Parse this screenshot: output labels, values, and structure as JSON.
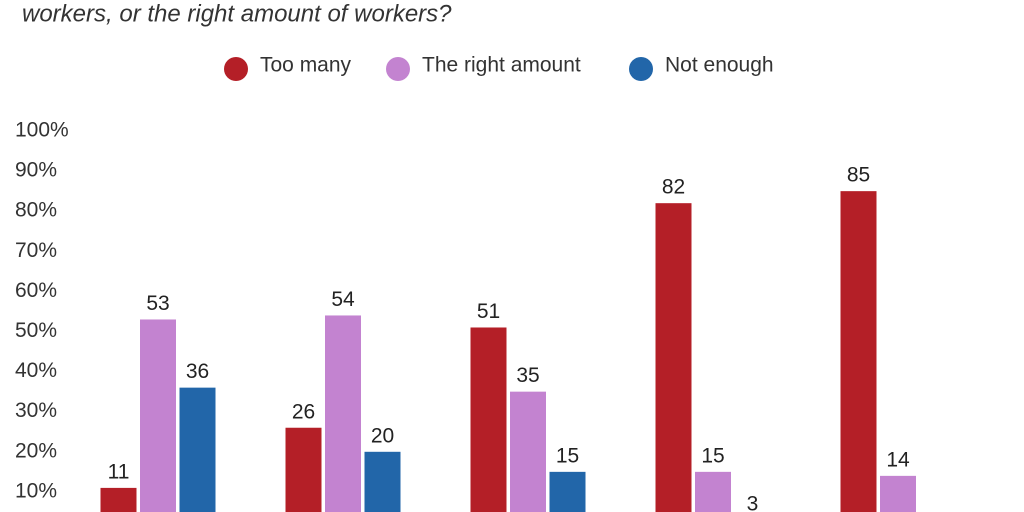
{
  "chart_data": {
    "type": "bar",
    "title": "workers, or the right amount of workers?",
    "categories": [
      null,
      null,
      null,
      null,
      null
    ],
    "series": [
      {
        "name": "Too many",
        "color": "#b41f27",
        "values": [
          11,
          26,
          51,
          82,
          85
        ]
      },
      {
        "name": "The right amount",
        "color": "#c383d0",
        "values": [
          53,
          54,
          35,
          15,
          14
        ]
      },
      {
        "name": "Not enough",
        "color": "#2266a9",
        "values": [
          36,
          20,
          15,
          3,
          null
        ]
      }
    ],
    "ylim": [
      0,
      100
    ],
    "yticks": [
      {
        "value": 10,
        "label": "10%"
      },
      {
        "value": 20,
        "label": "20%"
      },
      {
        "value": 30,
        "label": "30%"
      },
      {
        "value": 40,
        "label": "40%"
      },
      {
        "value": 50,
        "label": "50%"
      },
      {
        "value": 60,
        "label": "60%"
      },
      {
        "value": 70,
        "label": "70%"
      },
      {
        "value": 80,
        "label": "80%"
      },
      {
        "value": 90,
        "label": "90%"
      },
      {
        "value": 100,
        "label": "100%"
      }
    ],
    "grid": false,
    "legend": "top"
  }
}
